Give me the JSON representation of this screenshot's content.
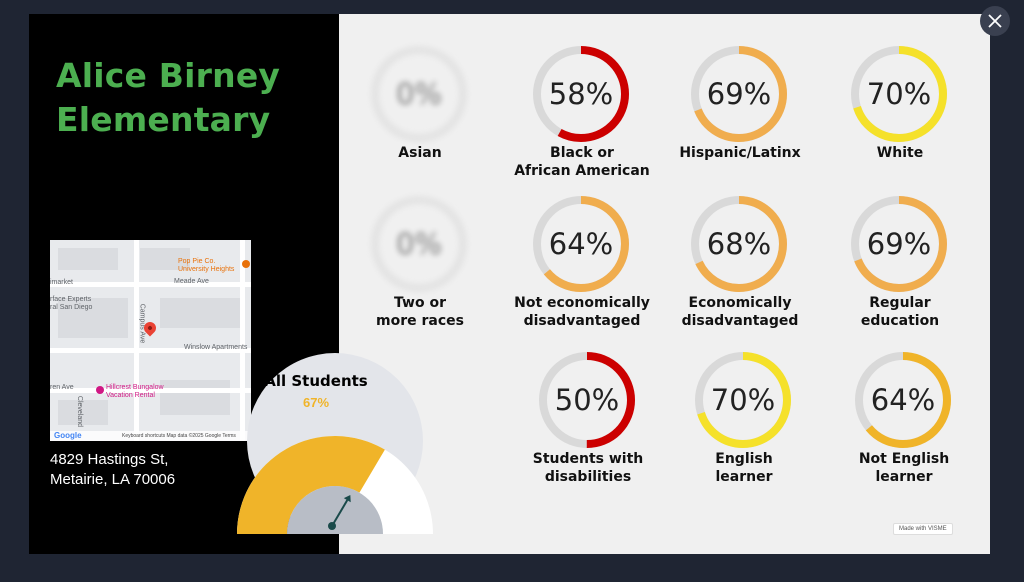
{
  "school": {
    "name": "Alice Birney Elementary",
    "address_line1": "4829 Hastings St,",
    "address_line2": "Metairie, LA 70006"
  },
  "map": {
    "labels": [
      "Meade Ave",
      "Winslow Apartments",
      "Campus Ave",
      "Cleveland",
      "ren Ave",
      "imarket"
    ],
    "pois": [
      "Pop Pie Co.",
      "University Heights",
      "rface Experts",
      "ral San Diego",
      "Hillcrest Bungalow",
      "Vacation Rental"
    ],
    "footer_logo": "Google",
    "footer_credits": "Keyboard shortcuts   Map data ©2025 Google   Terms"
  },
  "gauge": {
    "title": "All Students",
    "value_label": "67%",
    "value": 67,
    "colors": {
      "fill": "#f0b429",
      "track": "#ffffff",
      "hub": "#b8bdc6",
      "bg": "#e3e5ea",
      "needle": "#1a4a4a"
    }
  },
  "tiles": [
    {
      "value": 0,
      "label": "0%",
      "caption1": "Asian",
      "caption2": "",
      "color": "#cccccc",
      "blurred": true
    },
    {
      "value": 58,
      "label": "58%",
      "caption1": "Black or",
      "caption2": "African American",
      "color": "#cc0000",
      "blurred": false
    },
    {
      "value": 69,
      "label": "69%",
      "caption1": "Hispanic/Latinx",
      "caption2": "",
      "color": "#f0ad4e",
      "blurred": false
    },
    {
      "value": 70,
      "label": "70%",
      "caption1": "White",
      "caption2": "",
      "color": "#f5e12a",
      "blurred": false
    },
    {
      "value": 0,
      "label": "0%",
      "caption1": "Two or",
      "caption2": "more races",
      "color": "#cccccc",
      "blurred": true
    },
    {
      "value": 64,
      "label": "64%",
      "caption1": "Not economically",
      "caption2": "disadvantaged",
      "color": "#f0ad4e",
      "blurred": false
    },
    {
      "value": 68,
      "label": "68%",
      "caption1": "Economically",
      "caption2": "disadvantaged",
      "color": "#f0ad4e",
      "blurred": false
    },
    {
      "value": 69,
      "label": "69%",
      "caption1": "Regular",
      "caption2": "education",
      "color": "#f0ad4e",
      "blurred": false
    },
    {
      "value": 50,
      "label": "50%",
      "caption1": "Students with",
      "caption2": "disabilities",
      "color": "#cc0000",
      "blurred": false
    },
    {
      "value": 70,
      "label": "70%",
      "caption1": "English",
      "caption2": "learner",
      "color": "#f5e12a",
      "blurred": false
    },
    {
      "value": 64,
      "label": "64%",
      "caption1": "Not English",
      "caption2": "learner",
      "color": "#f0b429",
      "blurred": false
    }
  ],
  "watermark": "Made with VISME",
  "icons": {
    "close": "close-icon",
    "map_pin": "map-pin-icon"
  }
}
